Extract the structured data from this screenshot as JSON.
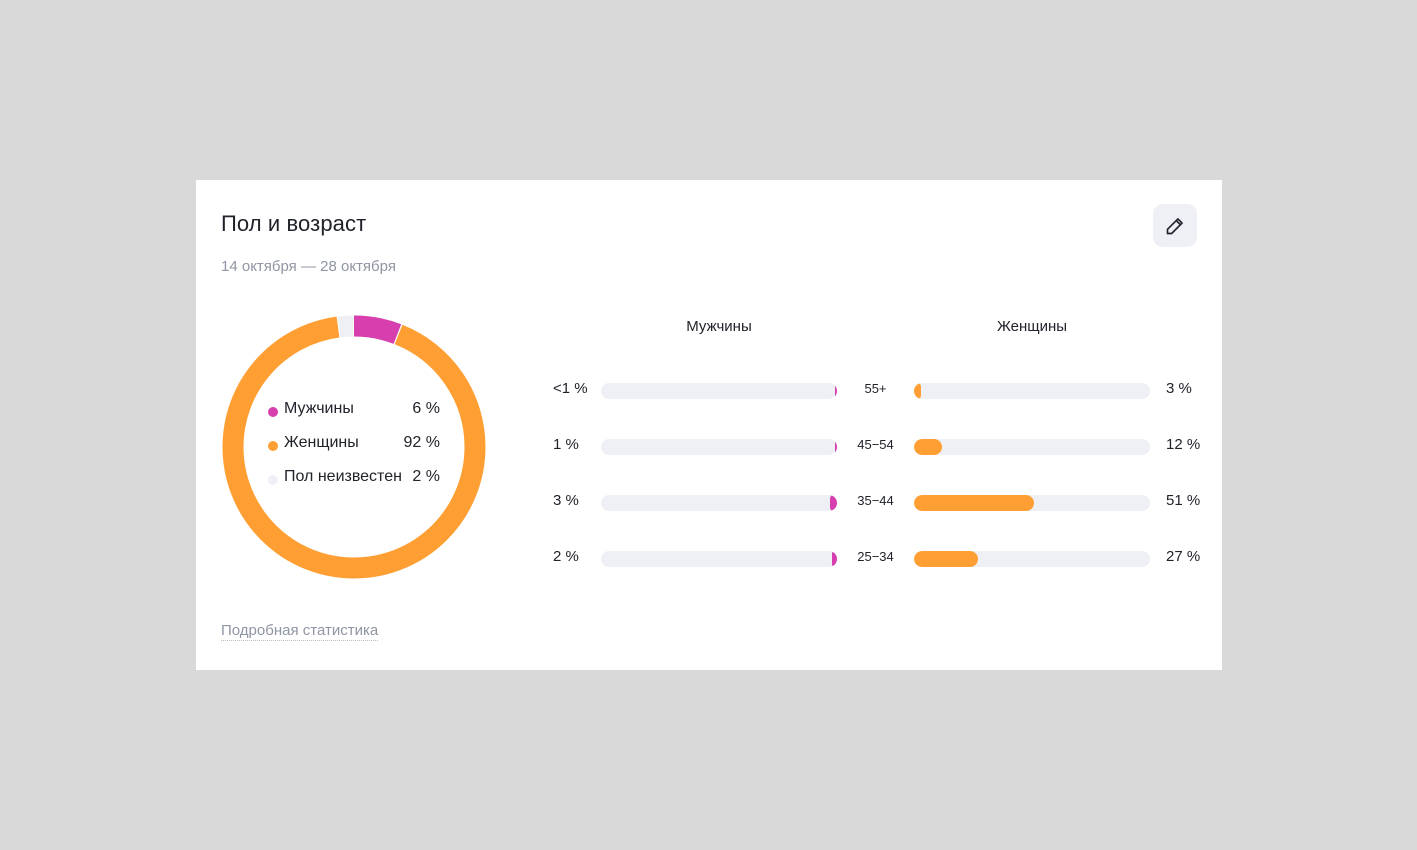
{
  "card": {
    "title": "Пол и возраст",
    "period": "14 октября — 28 октября",
    "edit_icon": "pencil-icon",
    "more_link": "Подробная статистика"
  },
  "chart_data": [
    {
      "type": "pie",
      "title": "",
      "donut": true,
      "slices": [
        {
          "name": "Мужчины",
          "value": 6,
          "label": "6 %",
          "color": "#d63fad"
        },
        {
          "name": "Женщины",
          "value": 92,
          "label": "92 %",
          "color": "#ff9f33"
        },
        {
          "name": "Пол неизвестен",
          "value": 2,
          "label": "2 %",
          "color": "#eef0f5"
        }
      ]
    },
    {
      "type": "bar",
      "orientation": "horizontal",
      "categories": [
        "55+",
        "45−54",
        "35−44",
        "25−34"
      ],
      "series": [
        {
          "name": "Мужчины",
          "color": "#d63fad",
          "values": [
            0.5,
            1,
            3,
            2
          ],
          "labels": [
            "<1 %",
            "1 %",
            "3 %",
            "2 %"
          ]
        },
        {
          "name": "Женщины",
          "color": "#ff9f33",
          "values": [
            3,
            12,
            51,
            27
          ],
          "labels": [
            "3 %",
            "12 %",
            "51 %",
            "27 %"
          ]
        }
      ],
      "xlim": [
        0,
        100
      ]
    }
  ]
}
